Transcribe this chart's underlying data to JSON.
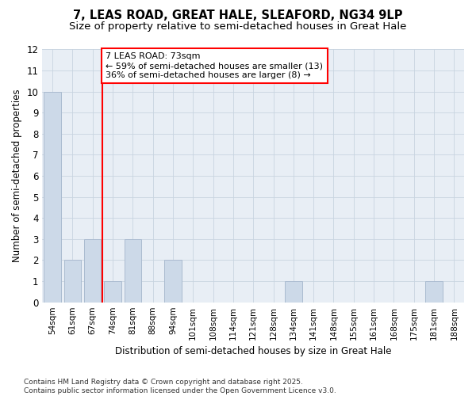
{
  "title_line1": "7, LEAS ROAD, GREAT HALE, SLEAFORD, NG34 9LP",
  "title_line2": "Size of property relative to semi-detached houses in Great Hale",
  "xlabel": "Distribution of semi-detached houses by size in Great Hale",
  "ylabel": "Number of semi-detached properties",
  "categories": [
    "54sqm",
    "61sqm",
    "67sqm",
    "74sqm",
    "81sqm",
    "88sqm",
    "94sqm",
    "101sqm",
    "108sqm",
    "114sqm",
    "121sqm",
    "128sqm",
    "134sqm",
    "141sqm",
    "148sqm",
    "155sqm",
    "161sqm",
    "168sqm",
    "175sqm",
    "181sqm",
    "188sqm"
  ],
  "values": [
    10,
    2,
    3,
    1,
    3,
    0,
    2,
    0,
    0,
    0,
    0,
    0,
    1,
    0,
    0,
    0,
    0,
    0,
    0,
    1,
    0
  ],
  "bar_color": "#ccd9e8",
  "bar_edgecolor": "#aabbd0",
  "vline_x_index": 3,
  "vline_color": "red",
  "annotation_text": "7 LEAS ROAD: 73sqm\n← 59% of semi-detached houses are smaller (13)\n36% of semi-detached houses are larger (8) →",
  "annotation_box_color": "white",
  "annotation_box_edgecolor": "red",
  "ylim": [
    0,
    12
  ],
  "yticks": [
    0,
    1,
    2,
    3,
    4,
    5,
    6,
    7,
    8,
    9,
    10,
    11,
    12
  ],
  "footer_text": "Contains HM Land Registry data © Crown copyright and database right 2025.\nContains public sector information licensed under the Open Government Licence v3.0.",
  "background_color": "#ffffff",
  "plot_bg_color": "#e8eef5",
  "grid_color": "#c8d4e0",
  "title_fontsize": 10.5,
  "subtitle_fontsize": 9.5,
  "annotation_fontsize": 8,
  "footer_fontsize": 6.5
}
